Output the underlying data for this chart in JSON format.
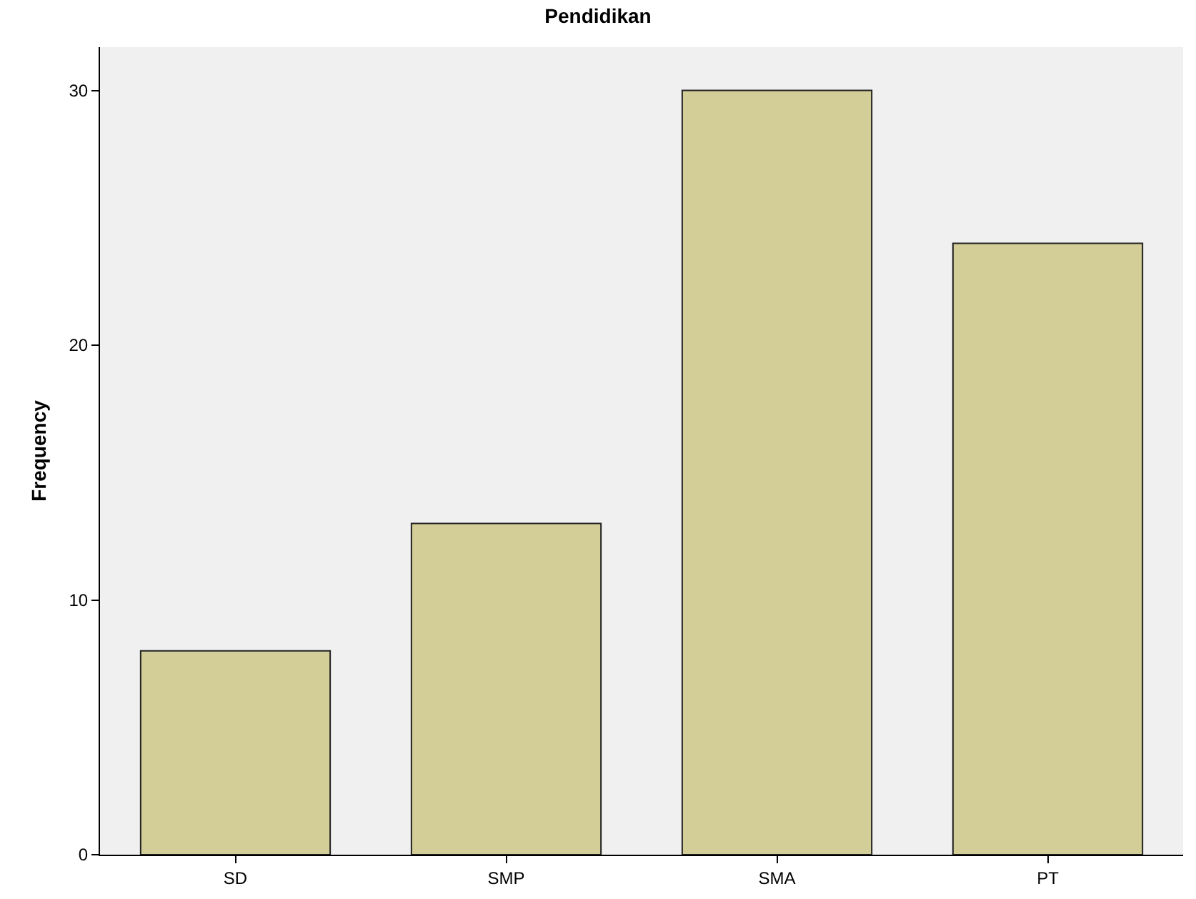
{
  "chart_data": {
    "type": "bar",
    "title": "Pendidikan",
    "ylabel": "Frequency",
    "categories": [
      "SD",
      "SMP",
      "SMA",
      "PT"
    ],
    "values": [
      8,
      13,
      30,
      24
    ],
    "color": "#d3ce97",
    "ylim": [
      0,
      31.7
    ],
    "yticks": [
      0,
      10,
      20,
      30
    ],
    "grid": false,
    "legend": false
  }
}
